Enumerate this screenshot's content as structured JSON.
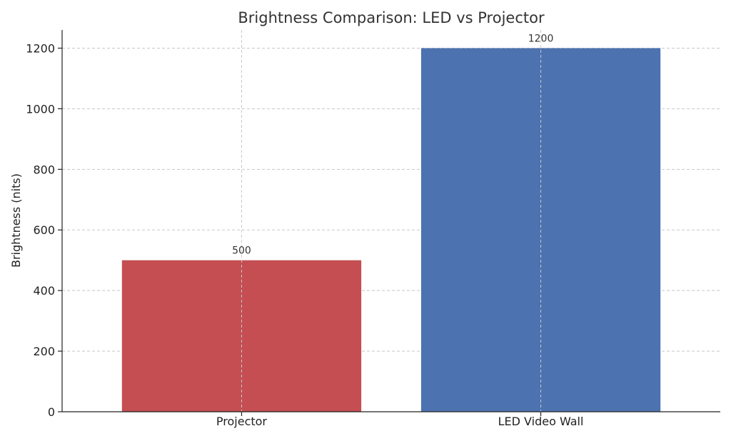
{
  "chart_data": {
    "type": "bar",
    "title": "Brightness Comparison: LED vs Projector",
    "xlabel": "",
    "ylabel": "Brightness (nits)",
    "categories": [
      "Projector",
      "LED Video Wall"
    ],
    "values": [
      500,
      1200
    ],
    "data_labels": [
      "500",
      "1200"
    ],
    "colors": [
      "#c44e52",
      "#4c72b0"
    ],
    "ylim": [
      0,
      1260
    ],
    "yticks": [
      0,
      200,
      400,
      600,
      800,
      1000,
      1200
    ],
    "grid": true,
    "legend": "none"
  }
}
